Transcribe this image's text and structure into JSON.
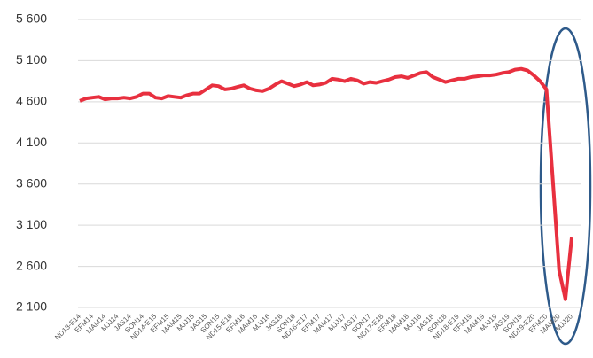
{
  "chart_data": {
    "type": "line",
    "categories": [
      "ND13-E14",
      null,
      "EFM14",
      null,
      "MAM14",
      null,
      "MJJ14",
      null,
      "JAS14",
      null,
      "SON14",
      null,
      "ND14-E15",
      null,
      "EFM15",
      null,
      "MAM15",
      null,
      "MJJ15",
      null,
      "JAS15",
      null,
      "SON15",
      null,
      "ND15-E16",
      null,
      "EFM16",
      null,
      "MAM16",
      null,
      "MJJ16",
      null,
      "JAS16",
      null,
      "SON16",
      null,
      "ND16-E17",
      null,
      "EFM17",
      null,
      "MAM17",
      null,
      "MJJ17",
      null,
      "JAS17",
      null,
      "SON17",
      null,
      "ND17-E18",
      null,
      "EFM18",
      null,
      "MAM18",
      null,
      "MJJ18",
      null,
      "JAS18",
      null,
      "SON18",
      null,
      "ND18-E19",
      null,
      "EFM19",
      null,
      "MAM19",
      null,
      "MJJ19",
      null,
      "JAS19",
      null,
      "SON19",
      null,
      "ND19-E20",
      null,
      "EFM20",
      null,
      "MAM20",
      null,
      "MJJ20"
    ],
    "series": [
      {
        "color": "#e8303f",
        "values": [
          4610,
          4640,
          4650,
          4660,
          4630,
          4640,
          4640,
          4650,
          4640,
          4660,
          4700,
          4700,
          4650,
          4640,
          4670,
          4660,
          4650,
          4680,
          4700,
          4700,
          4750,
          4800,
          4790,
          4750,
          4760,
          4780,
          4800,
          4760,
          4740,
          4730,
          4760,
          4810,
          4850,
          4820,
          4790,
          4810,
          4840,
          4800,
          4810,
          4830,
          4880,
          4870,
          4850,
          4880,
          4860,
          4820,
          4840,
          4830,
          4850,
          4870,
          4900,
          4910,
          4890,
          4920,
          4950,
          4960,
          4900,
          4870,
          4840,
          4860,
          4880,
          4880,
          4900,
          4910,
          4920,
          4920,
          4930,
          4950,
          4960,
          4990,
          5000,
          4980,
          4920,
          4850,
          4750,
          3650,
          2550,
          2200,
          2950
        ]
      }
    ],
    "ylim": [
      2100,
      5600
    ],
    "yticks": [
      {
        "value": 2100,
        "label": "2 100"
      },
      {
        "value": 2600,
        "label": "2 600"
      },
      {
        "value": 3100,
        "label": "3 100"
      },
      {
        "value": 3600,
        "label": "3 600"
      },
      {
        "value": 4100,
        "label": "4 100"
      },
      {
        "value": 4600,
        "label": "4 600"
      },
      {
        "value": 5100,
        "label": "5 100"
      },
      {
        "value": 5600,
        "label": "5 600"
      }
    ],
    "grid": true
  }
}
